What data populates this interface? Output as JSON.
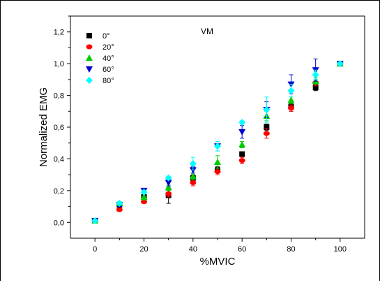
{
  "chart_data": {
    "type": "scatter",
    "annotation": "VM",
    "xlabel": "%MVIC",
    "ylabel": "Normalized EMG",
    "xlim": [
      -10,
      110
    ],
    "ylim": [
      -0.1,
      1.3
    ],
    "x_ticks": [
      "0",
      "20",
      "40",
      "60",
      "80",
      "100"
    ],
    "x_tick_values": [
      0,
      20,
      40,
      60,
      80,
      100
    ],
    "y_ticks": [
      "0,0",
      "0,2",
      "0,4",
      "0,6",
      "0,8",
      "1,0",
      "1,2"
    ],
    "y_tick_values": [
      0.0,
      0.2,
      0.4,
      0.6,
      0.8,
      1.0,
      1.2
    ],
    "legend_position": "top-left",
    "grid": false,
    "x": [
      0,
      10,
      20,
      30,
      40,
      50,
      60,
      70,
      80,
      90,
      100
    ],
    "series": [
      {
        "name": "0°",
        "color": "#000000",
        "marker": "square",
        "values": [
          0.01,
          0.11,
          0.16,
          0.17,
          0.28,
          0.33,
          0.43,
          0.6,
          0.73,
          0.85,
          1.0
        ],
        "errors": [
          0.01,
          0.01,
          0.02,
          0.05,
          0.02,
          0.02,
          0.01,
          0.02,
          0.03,
          0.02,
          0.0
        ]
      },
      {
        "name": "20°",
        "color": "#ff0000",
        "marker": "circle",
        "values": [
          0.01,
          0.08,
          0.13,
          0.18,
          0.25,
          0.32,
          0.39,
          0.56,
          0.72,
          0.88,
          1.0
        ],
        "errors": [
          0.01,
          0.01,
          0.01,
          0.02,
          0.02,
          0.02,
          0.02,
          0.03,
          0.02,
          0.02,
          0.0
        ]
      },
      {
        "name": "40°",
        "color": "#00cc00",
        "marker": "triangle-up",
        "values": [
          0.01,
          0.12,
          0.16,
          0.22,
          0.29,
          0.38,
          0.49,
          0.67,
          0.77,
          0.89,
          1.0
        ],
        "errors": [
          0.01,
          0.01,
          0.02,
          0.02,
          0.02,
          0.04,
          0.02,
          0.03,
          0.02,
          0.02,
          0.0
        ]
      },
      {
        "name": "60°",
        "color": "#0000cc",
        "marker": "triangle-down",
        "values": [
          0.01,
          0.11,
          0.2,
          0.25,
          0.33,
          0.48,
          0.57,
          0.71,
          0.87,
          0.96,
          1.0
        ],
        "errors": [
          0.01,
          0.01,
          0.01,
          0.02,
          0.02,
          0.03,
          0.04,
          0.05,
          0.06,
          0.07,
          0.0
        ]
      },
      {
        "name": "80°",
        "color": "#00ffff",
        "marker": "diamond",
        "values": [
          0.01,
          0.12,
          0.19,
          0.28,
          0.37,
          0.48,
          0.63,
          0.71,
          0.83,
          0.93,
          1.0
        ],
        "errors": [
          0.01,
          0.01,
          0.01,
          0.01,
          0.04,
          0.03,
          0.01,
          0.08,
          0.04,
          0.03,
          0.0
        ]
      }
    ]
  }
}
